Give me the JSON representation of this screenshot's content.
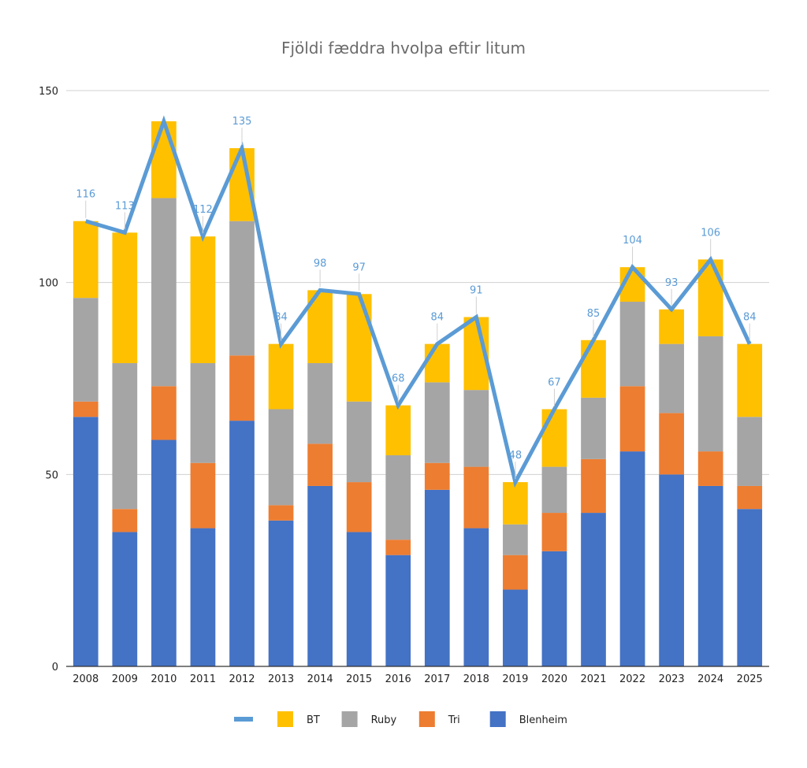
{
  "chart_data": {
    "type": "bar",
    "stacked": true,
    "title": "Fjöldi fæddra hvolpa eftir litum",
    "xlabel": "",
    "ylabel": "",
    "ylim": [
      0,
      150
    ],
    "yticks": [
      0,
      50,
      100,
      150
    ],
    "grid": true,
    "legend_position": "bottom",
    "categories": [
      "2008",
      "2009",
      "2010",
      "2011",
      "2012",
      "2013",
      "2014",
      "2015",
      "2016",
      "2017",
      "2018",
      "2019",
      "2020",
      "2021",
      "2022",
      "2023",
      "2024",
      "2025"
    ],
    "series": [
      {
        "name": "Blenheim",
        "type": "bar",
        "color": "#4472c4",
        "values": [
          65,
          35,
          59,
          36,
          64,
          38,
          47,
          35,
          29,
          46,
          36,
          20,
          30,
          40,
          56,
          50,
          47,
          41
        ]
      },
      {
        "name": "Tri",
        "type": "bar",
        "color": "#ed7d31",
        "values": [
          4,
          6,
          14,
          17,
          17,
          4,
          11,
          13,
          4,
          7,
          16,
          9,
          10,
          14,
          17,
          16,
          9,
          6
        ]
      },
      {
        "name": "Ruby",
        "type": "bar",
        "color": "#a5a5a5",
        "values": [
          27,
          38,
          49,
          26,
          35,
          25,
          21,
          21,
          22,
          21,
          20,
          8,
          12,
          16,
          22,
          18,
          30,
          18
        ]
      },
      {
        "name": "BT",
        "type": "bar",
        "color": "#ffc000",
        "values": [
          20,
          34,
          20,
          33,
          19,
          17,
          19,
          28,
          13,
          10,
          19,
          11,
          15,
          15,
          9,
          9,
          20,
          19
        ]
      },
      {
        "name": "",
        "type": "line",
        "color": "#5b9bd5",
        "values": [
          116,
          113,
          142,
          112,
          135,
          84,
          98,
          97,
          68,
          84,
          91,
          48,
          67,
          85,
          104,
          93,
          106,
          84
        ],
        "data_labels": [
          "116",
          "113",
          "",
          "112",
          "135",
          "84",
          "98",
          "97",
          "68",
          "84",
          "91",
          "48",
          "67",
          "85",
          "104",
          "93",
          "106",
          "84"
        ]
      }
    ]
  }
}
